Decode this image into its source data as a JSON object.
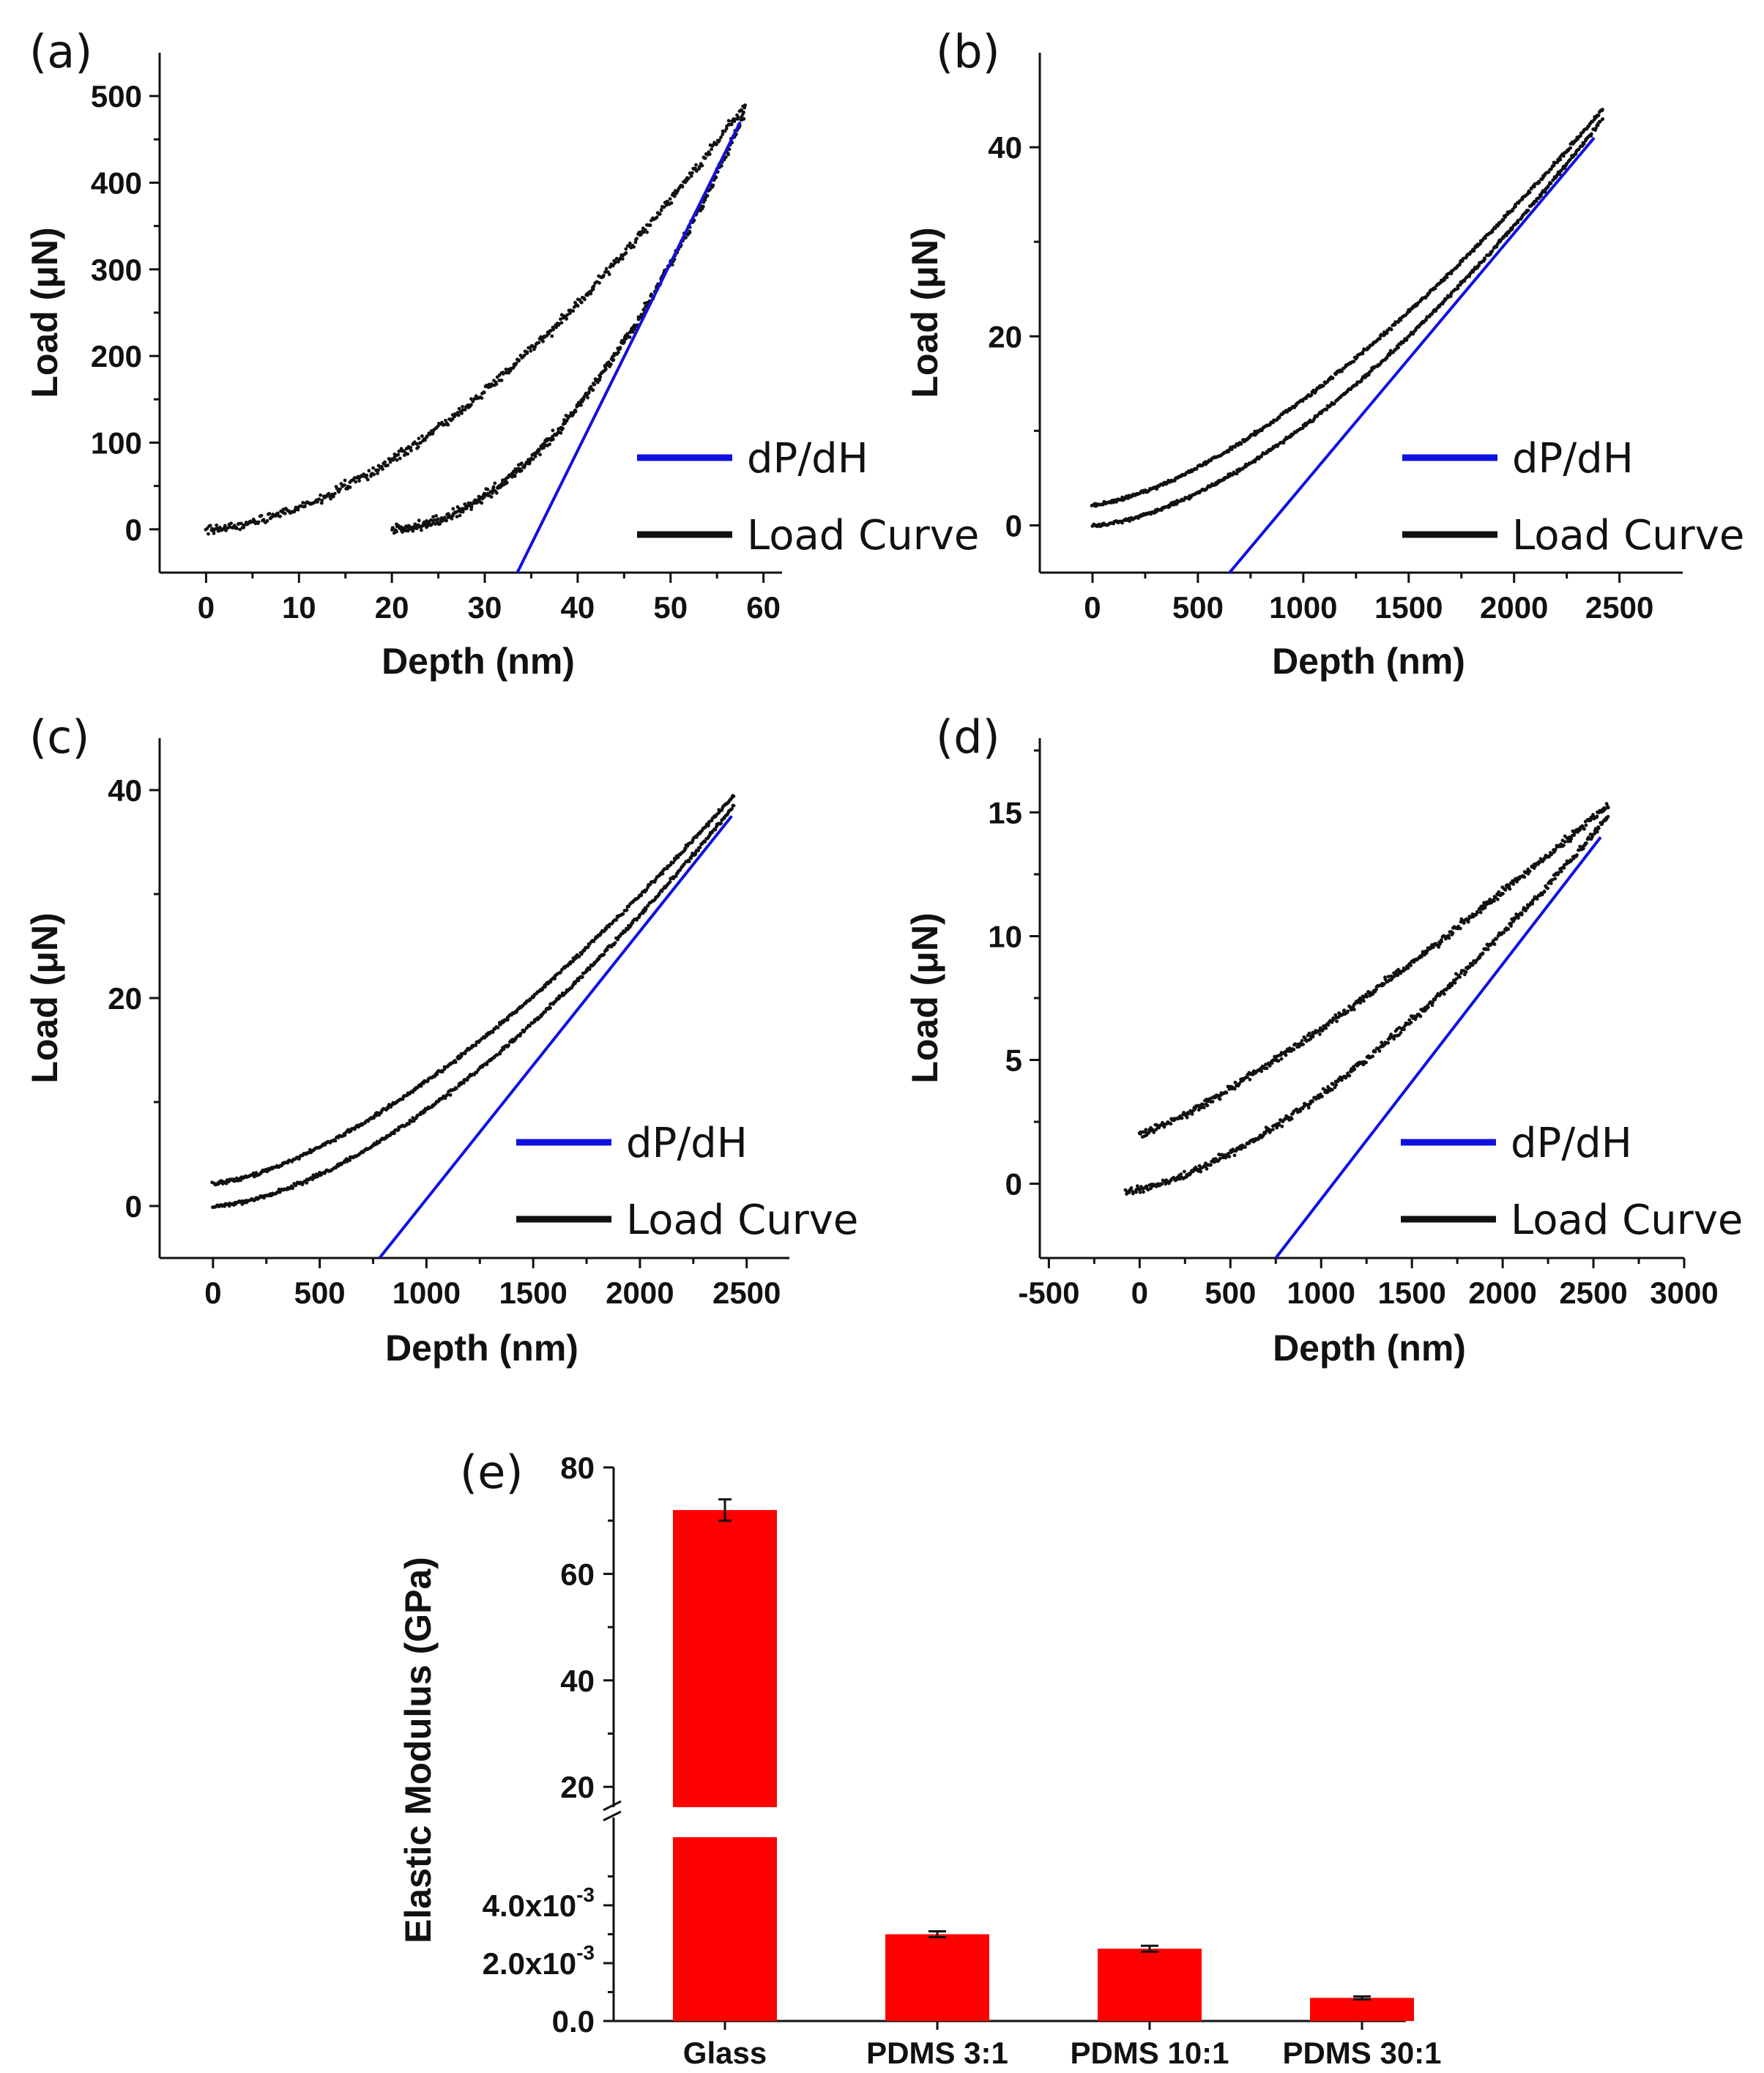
{
  "chart_data": [
    {
      "type": "scatter",
      "panel_label": "(a)",
      "xlabel": "Depth (nm)",
      "ylabel": "Load (μN)",
      "xlim": [
        -5,
        62
      ],
      "ylim": [
        -50,
        550
      ],
      "xticks": [
        0,
        10,
        20,
        30,
        40,
        50,
        60
      ],
      "xtick_labels": [
        "0",
        "10",
        "20",
        "30",
        "40",
        "50",
        "60"
      ],
      "yticks": [
        0,
        100,
        200,
        300,
        400,
        500
      ],
      "ytick_labels": [
        "0",
        "100",
        "200",
        "300",
        "400",
        "500"
      ],
      "loading_curve": {
        "start": [
          0,
          0
        ],
        "end": [
          58,
          490
        ],
        "exponent": 1.7
      },
      "unloading_curve": {
        "start": [
          20,
          0
        ],
        "end": [
          58,
          480
        ],
        "exponent": 1.9
      },
      "noise": 9,
      "fit_line": {
        "x": [
          33.5,
          57.5
        ],
        "y": [
          -50,
          470
        ]
      },
      "legend": [
        {
          "label": "dP/dH",
          "color": "#1010e0"
        },
        {
          "label": "Load Curve",
          "color": "#111111"
        }
      ]
    },
    {
      "type": "scatter",
      "panel_label": "(b)",
      "xlabel": "Depth (nm)",
      "ylabel": "Load (μN)",
      "xlim": [
        -250,
        2800
      ],
      "ylim": [
        -5,
        50
      ],
      "xticks": [
        0,
        500,
        1000,
        1500,
        2000,
        2500
      ],
      "xtick_labels": [
        "0",
        "500",
        "1000",
        "1500",
        "2000",
        "2500"
      ],
      "yticks": [
        0,
        20,
        40
      ],
      "ytick_labels": [
        "0",
        "20",
        "40"
      ],
      "loading_curve": {
        "start": [
          0,
          2.2
        ],
        "end": [
          2420,
          44
        ],
        "exponent": 1.5
      },
      "unloading_curve": {
        "start": [
          0,
          0
        ],
        "end": [
          2420,
          43
        ],
        "exponent": 1.6
      },
      "noise": 0.3,
      "fit_line": {
        "x": [
          650,
          2380
        ],
        "y": [
          -5,
          41
        ]
      },
      "legend": [
        {
          "label": "dP/dH",
          "color": "#1010e0"
        },
        {
          "label": "Load Curve",
          "color": "#111111"
        }
      ]
    },
    {
      "type": "scatter",
      "panel_label": "(c)",
      "xlabel": "Depth (nm)",
      "ylabel": "Load (μN)",
      "xlim": [
        -250,
        2700
      ],
      "ylim": [
        -5,
        45
      ],
      "xticks": [
        0,
        500,
        1000,
        1500,
        2000,
        2500
      ],
      "xtick_labels": [
        "0",
        "500",
        "1000",
        "1500",
        "2000",
        "2500"
      ],
      "yticks": [
        0,
        20,
        40
      ],
      "ytick_labels": [
        "0",
        "20",
        "40"
      ],
      "loading_curve": {
        "start": [
          0,
          2.2
        ],
        "end": [
          2440,
          39.5
        ],
        "exponent": 1.5
      },
      "unloading_curve": {
        "start": [
          0,
          0
        ],
        "end": [
          2440,
          38.5
        ],
        "exponent": 1.6
      },
      "noise": 0.3,
      "fit_line": {
        "x": [
          780,
          2430
        ],
        "y": [
          -5,
          37.5
        ]
      },
      "legend": [
        {
          "label": "dP/dH",
          "color": "#1010e0"
        },
        {
          "label": "Load Curve",
          "color": "#111111"
        }
      ]
    },
    {
      "type": "scatter",
      "panel_label": "(d)",
      "xlabel": "Depth (nm)",
      "ylabel": "Load (μN)",
      "xlim": [
        -550,
        3000
      ],
      "ylim": [
        -3,
        18
      ],
      "xticks": [
        -500,
        0,
        500,
        1000,
        1500,
        2000,
        2500,
        3000
      ],
      "xtick_labels": [
        "-500",
        "0",
        "500",
        "1000",
        "1500",
        "2000",
        "2500",
        "3000"
      ],
      "yticks": [
        0,
        5,
        10,
        15
      ],
      "ytick_labels": [
        "0",
        "5",
        "10",
        "15"
      ],
      "loading_curve": {
        "start": [
          0,
          2
        ],
        "end": [
          2580,
          15.3
        ],
        "exponent": 1.2
      },
      "unloading_curve": {
        "start": [
          -80,
          -0.3
        ],
        "end": [
          2580,
          14.8
        ],
        "exponent": 1.5
      },
      "noise": 0.25,
      "fit_line": {
        "x": [
          750,
          2540
        ],
        "y": [
          -3,
          14
        ]
      },
      "legend": [
        {
          "label": "dP/dH",
          "color": "#1010e0"
        },
        {
          "label": "Load Curve",
          "color": "#111111"
        }
      ]
    },
    {
      "type": "bar",
      "panel_label": "(e)",
      "ylabel": "Elastic Modulus (GPa)",
      "categories": [
        "Glass",
        "PDMS 3:1",
        "PDMS 10:1",
        "PDMS 30:1"
      ],
      "values": [
        72,
        0.003,
        0.0025,
        0.0008
      ],
      "errors": [
        2.0,
        0.0001,
        0.0001,
        5e-05
      ],
      "bar_color": "#ff0000",
      "axis_break": true,
      "upper_ylim": [
        17,
        80
      ],
      "upper_ticks": [
        20,
        40,
        60,
        80
      ],
      "upper_tick_labels": [
        "20",
        "40",
        "60",
        "80"
      ],
      "lower_ylim": [
        0,
        0.006
      ],
      "lower_ticks": [
        0,
        0.002,
        0.004
      ],
      "lower_tick_labels": [
        {
          "base": "0.0",
          "exp": ""
        },
        {
          "base": "2.0x10",
          "exp": "-3"
        },
        {
          "base": "4.0x10",
          "exp": "-3"
        }
      ]
    }
  ]
}
